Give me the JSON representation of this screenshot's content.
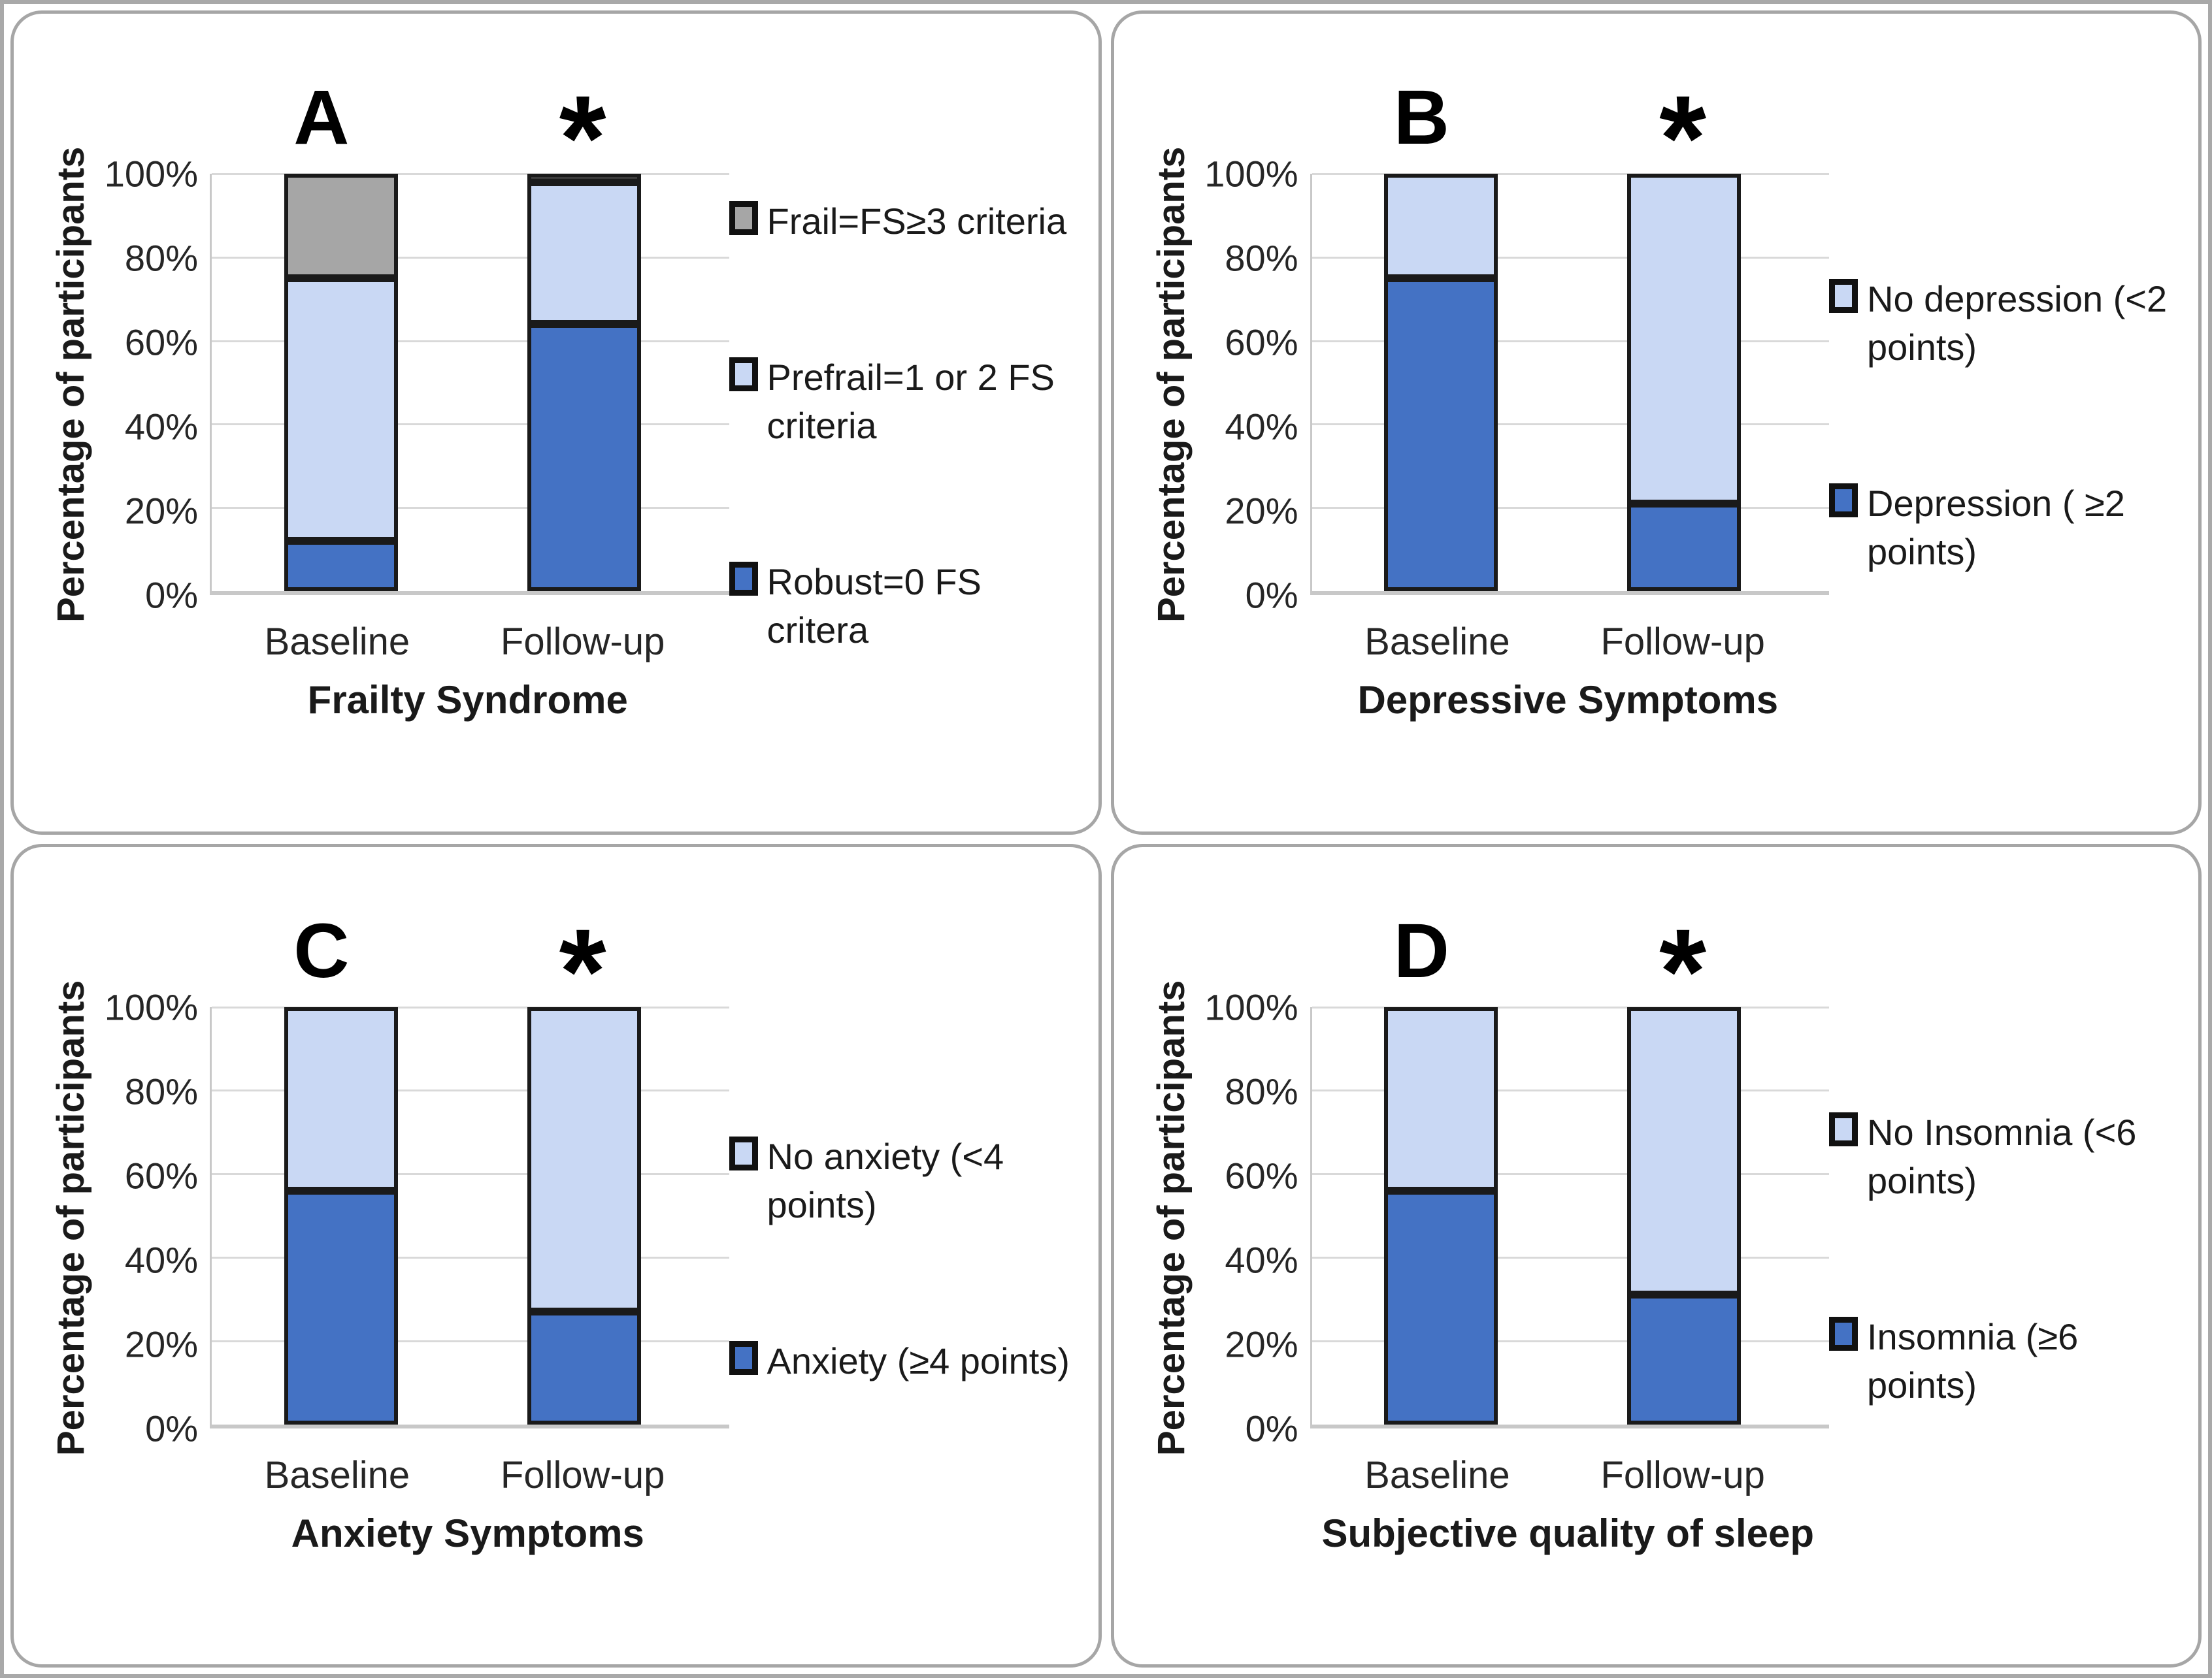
{
  "page": {
    "background": "#ffffff",
    "panel_border_color": "#a6a6a6",
    "bar_border_color": "#1a1a1a",
    "gridline_color": "#d9d9d9",
    "dark_blue": "#4472C4",
    "light_blue": "#C9D8F4",
    "gray": "#A6A6A6"
  },
  "chart_data": [
    {
      "type": "bar",
      "stacked": true,
      "panel": "A",
      "significance": "*",
      "xlabel": "Frailty Syndrome",
      "ylabel": "Percentage of participants",
      "categories": [
        "Baseline",
        "Follow-up"
      ],
      "y_ticks": [
        "100%",
        "80%",
        "60%",
        "40%",
        "20%",
        "0%"
      ],
      "ylim": [
        0,
        100
      ],
      "grid": true,
      "legend_position": "right",
      "series": [
        {
          "name": "Robust=0 FS critera",
          "color": "#4472C4",
          "values": [
            12,
            64
          ]
        },
        {
          "name": "Prefrail=1 or 2 FS criteria",
          "color": "#C9D8F4",
          "values": [
            63,
            34
          ]
        },
        {
          "name": "Frail=FS≥3 criteria",
          "color": "#A6A6A6",
          "values": [
            25,
            2
          ]
        }
      ],
      "legend": [
        {
          "label": "Frail=FS≥3 criteria",
          "color": "#A6A6A6"
        },
        {
          "label": "Prefrail=1 or 2 FS criteria",
          "color": "#C9D8F4"
        },
        {
          "label": "Robust=0 FS critera",
          "color": "#4472C4"
        }
      ]
    },
    {
      "type": "bar",
      "stacked": true,
      "panel": "B",
      "significance": "*",
      "xlabel": "Depressive Symptoms",
      "ylabel": "Percentage of participants",
      "categories": [
        "Baseline",
        "Follow-up"
      ],
      "y_ticks": [
        "100%",
        "80%",
        "60%",
        "40%",
        "20%",
        "0%"
      ],
      "ylim": [
        0,
        100
      ],
      "grid": true,
      "legend_position": "right",
      "series": [
        {
          "name": "Depression ( ≥2 points)",
          "color": "#4472C4",
          "values": [
            75,
            21
          ]
        },
        {
          "name": "No depression (<2 points)",
          "color": "#C9D8F4",
          "values": [
            25,
            79
          ]
        }
      ],
      "legend": [
        {
          "label": "No depression (<2 points)",
          "color": "#C9D8F4"
        },
        {
          "label": "Depression ( ≥2 points)",
          "color": "#4472C4"
        }
      ]
    },
    {
      "type": "bar",
      "stacked": true,
      "panel": "C",
      "significance": "*",
      "xlabel": "Anxiety Symptoms",
      "ylabel": "Percentage of participants",
      "categories": [
        "Baseline",
        "Follow-up"
      ],
      "y_ticks": [
        "100%",
        "80%",
        "60%",
        "40%",
        "20%",
        "0%"
      ],
      "ylim": [
        0,
        100
      ],
      "grid": true,
      "legend_position": "right",
      "series": [
        {
          "name": "Anxiety (≥4 points)",
          "color": "#4472C4",
          "values": [
            56,
            27
          ]
        },
        {
          "name": "No anxiety (<4 points)",
          "color": "#C9D8F4",
          "values": [
            44,
            73
          ]
        }
      ],
      "legend": [
        {
          "label": "No anxiety (<4 points)",
          "color": "#C9D8F4"
        },
        {
          "label": "Anxiety (≥4 points)",
          "color": "#4472C4"
        }
      ]
    },
    {
      "type": "bar",
      "stacked": true,
      "panel": "D",
      "significance": "*",
      "xlabel": "Subjective quality of sleep",
      "ylabel": "Percentage of participants",
      "categories": [
        "Baseline",
        "Follow-up"
      ],
      "y_ticks": [
        "100%",
        "80%",
        "60%",
        "40%",
        "20%",
        "0%"
      ],
      "ylim": [
        0,
        100
      ],
      "grid": true,
      "legend_position": "right",
      "series": [
        {
          "name": "Insomnia (≥6 points)",
          "color": "#4472C4",
          "values": [
            56,
            31
          ]
        },
        {
          "name": "No Insomnia (<6 points)",
          "color": "#C9D8F4",
          "values": [
            44,
            69
          ]
        }
      ],
      "legend": [
        {
          "label": "No Insomnia (<6 points)",
          "color": "#C9D8F4"
        },
        {
          "label": "Insomnia (≥6 points)",
          "color": "#4472C4"
        }
      ]
    }
  ]
}
